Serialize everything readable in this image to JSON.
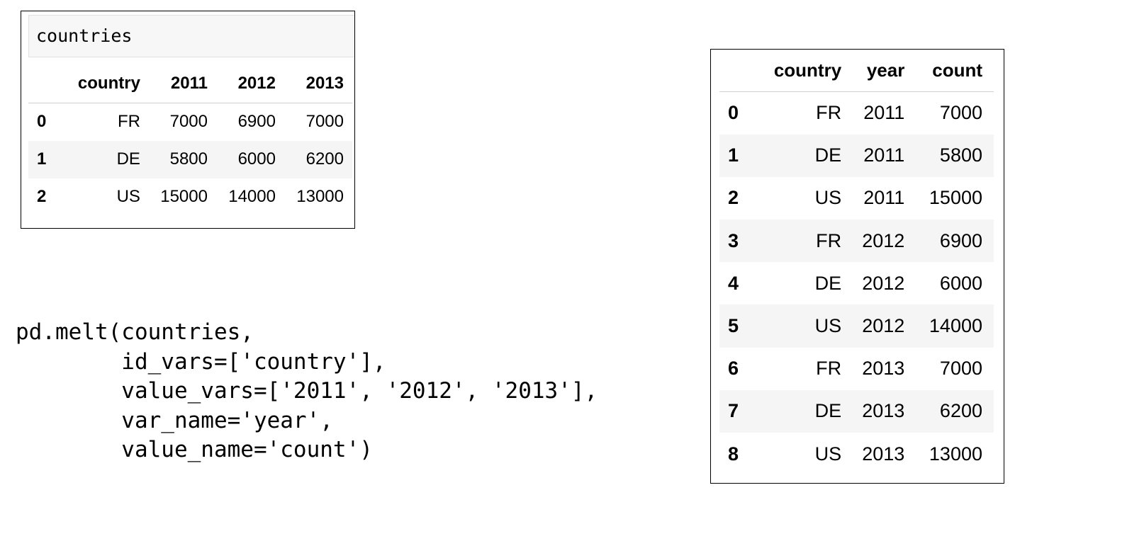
{
  "left_panel": {
    "input_text": "countries",
    "columns": [
      "",
      "country",
      "2011",
      "2012",
      "2013"
    ],
    "rows": [
      {
        "index": "0",
        "country": "FR",
        "y2011": "7000",
        "y2012": "6900",
        "y2013": "7000"
      },
      {
        "index": "1",
        "country": "DE",
        "y2011": "5800",
        "y2012": "6000",
        "y2013": "6200"
      },
      {
        "index": "2",
        "country": "US",
        "y2011": "15000",
        "y2012": "14000",
        "y2013": "13000"
      }
    ]
  },
  "code": {
    "text": "pd.melt(countries,\n        id_vars=['country'],\n        value_vars=['2011', '2012', '2013'],\n        var_name='year',\n        value_name='count')"
  },
  "right_panel": {
    "columns": [
      "",
      "country",
      "year",
      "count"
    ],
    "rows": [
      {
        "index": "0",
        "country": "FR",
        "year": "2011",
        "count": "7000"
      },
      {
        "index": "1",
        "country": "DE",
        "year": "2011",
        "count": "5800"
      },
      {
        "index": "2",
        "country": "US",
        "year": "2011",
        "count": "15000"
      },
      {
        "index": "3",
        "country": "FR",
        "year": "2012",
        "count": "6900"
      },
      {
        "index": "4",
        "country": "DE",
        "year": "2012",
        "count": "6000"
      },
      {
        "index": "5",
        "country": "US",
        "year": "2012",
        "count": "14000"
      },
      {
        "index": "6",
        "country": "FR",
        "year": "2013",
        "count": "7000"
      },
      {
        "index": "7",
        "country": "DE",
        "year": "2013",
        "count": "6200"
      },
      {
        "index": "8",
        "country": "US",
        "year": "2013",
        "count": "13000"
      }
    ]
  },
  "colors": {
    "row_alt": "#f5f5f5",
    "input_bg": "#f7f7f7",
    "header_rule": "#cfcfcf",
    "border": "#000000"
  }
}
